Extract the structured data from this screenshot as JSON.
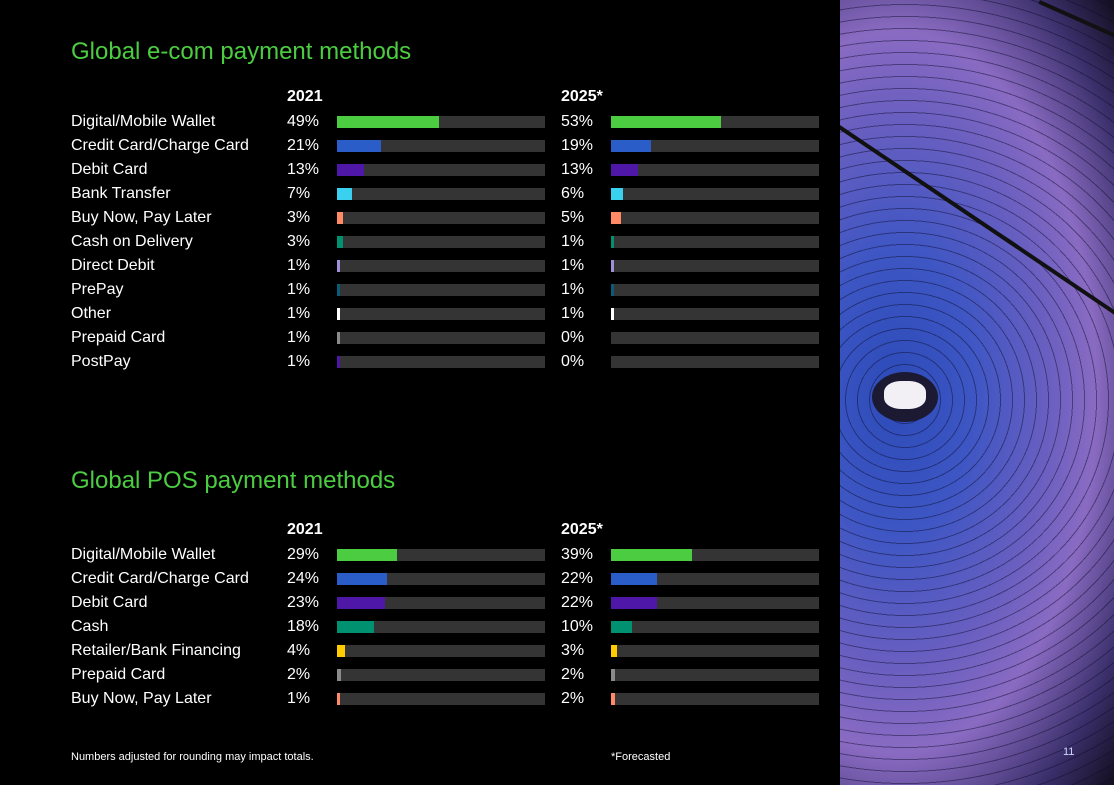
{
  "page_number": "11",
  "footnote": "Numbers adjusted for rounding may impact totals.",
  "forecast_note": "*Forecasted",
  "chart_data": [
    {
      "type": "bar",
      "title": "Global e-com payment methods",
      "xlim": [
        0,
        100
      ],
      "columns": [
        "2021",
        "2025*"
      ],
      "categories": [
        "Digital/Mobile Wallet",
        "Credit Card/Charge Card",
        "Debit Card",
        "Bank Transfer",
        "Buy Now, Pay Later",
        "Cash on Delivery",
        "Direct Debit",
        "PrePay",
        "Other",
        "Prepaid Card",
        "PostPay"
      ],
      "colors": [
        "#4ccd41",
        "#2a5dc8",
        "#4f17a8",
        "#3ad0f0",
        "#ff8a65",
        "#009270",
        "#a08ed8",
        "#0a5a7a",
        "#ffffff",
        "#8a8a8a",
        "#4f17a8"
      ],
      "series": [
        {
          "name": "2021",
          "values": [
            49,
            21,
            13,
            7,
            3,
            3,
            1,
            1,
            1,
            1,
            1
          ]
        },
        {
          "name": "2025*",
          "values": [
            53,
            19,
            13,
            6,
            5,
            1,
            1,
            1,
            1,
            0,
            0
          ]
        }
      ]
    },
    {
      "type": "bar",
      "title": "Global POS payment methods",
      "xlim": [
        0,
        100
      ],
      "columns": [
        "2021",
        "2025*"
      ],
      "categories": [
        "Digital/Mobile Wallet",
        "Credit Card/Charge Card",
        "Debit Card",
        "Cash",
        "Retailer/Bank Financing",
        "Prepaid Card",
        "Buy Now, Pay Later"
      ],
      "colors": [
        "#4ccd41",
        "#2a5dc8",
        "#4f17a8",
        "#009270",
        "#ffcc00",
        "#8a8a8a",
        "#ff8a65"
      ],
      "series": [
        {
          "name": "2021",
          "values": [
            29,
            24,
            23,
            18,
            4,
            2,
            1
          ]
        },
        {
          "name": "2025*",
          "values": [
            39,
            22,
            22,
            10,
            3,
            2,
            2
          ]
        }
      ]
    }
  ]
}
